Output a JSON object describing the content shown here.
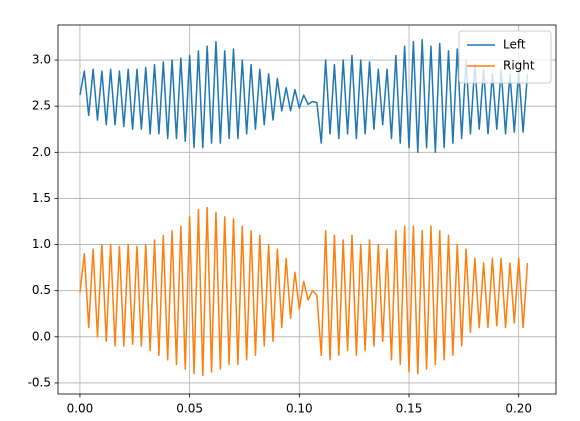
{
  "chart_data": {
    "type": "line",
    "x": [
      0,
      0.002,
      0.004,
      0.006,
      0.008,
      0.01,
      0.012,
      0.014,
      0.016,
      0.018,
      0.02,
      0.022,
      0.024,
      0.026,
      0.028,
      0.03,
      0.032,
      0.034,
      0.036,
      0.038,
      0.04,
      0.042,
      0.044,
      0.046,
      0.048,
      0.05,
      0.052,
      0.054,
      0.056,
      0.058,
      0.06,
      0.062,
      0.064,
      0.066,
      0.068,
      0.07,
      0.072,
      0.074,
      0.076,
      0.078,
      0.08,
      0.082,
      0.084,
      0.086,
      0.088,
      0.09,
      0.092,
      0.094,
      0.096,
      0.098,
      0.1,
      0.102,
      0.104,
      0.106,
      0.108,
      0.11,
      0.112,
      0.114,
      0.116,
      0.118,
      0.12,
      0.122,
      0.124,
      0.126,
      0.128,
      0.13,
      0.132,
      0.134,
      0.136,
      0.138,
      0.14,
      0.142,
      0.144,
      0.146,
      0.148,
      0.15,
      0.152,
      0.154,
      0.156,
      0.158,
      0.16,
      0.162,
      0.164,
      0.166,
      0.168,
      0.17,
      0.172,
      0.174,
      0.176,
      0.178,
      0.18,
      0.182,
      0.184,
      0.186,
      0.188,
      0.19,
      0.192,
      0.194,
      0.196,
      0.198,
      0.2,
      0.202,
      0.204
    ],
    "series": [
      {
        "name": "Left",
        "color": "#1f77b4",
        "values": [
          2.62,
          2.88,
          2.4,
          2.9,
          2.35,
          2.88,
          2.3,
          2.9,
          2.3,
          2.88,
          2.28,
          2.9,
          2.25,
          2.9,
          2.25,
          2.92,
          2.2,
          2.95,
          2.2,
          2.98,
          2.15,
          3.0,
          2.15,
          3.02,
          2.12,
          3.05,
          2.05,
          3.1,
          2.05,
          3.15,
          2.1,
          3.2,
          2.1,
          3.1,
          2.15,
          3.12,
          2.15,
          3.0,
          2.2,
          2.95,
          2.25,
          2.9,
          2.3,
          2.85,
          2.35,
          2.8,
          2.45,
          2.7,
          2.45,
          2.68,
          2.48,
          2.62,
          2.52,
          2.55,
          2.54,
          2.1,
          3.0,
          2.2,
          2.95,
          2.15,
          3.0,
          2.2,
          3.05,
          2.15,
          3.0,
          2.2,
          2.98,
          2.25,
          2.9,
          2.3,
          2.9,
          2.15,
          3.05,
          2.1,
          3.15,
          2.05,
          3.2,
          2.0,
          3.22,
          2.05,
          3.15,
          2.0,
          3.18,
          2.05,
          3.1,
          2.1,
          3.12,
          2.15,
          3.0,
          2.2,
          2.95,
          2.25,
          2.9,
          2.2,
          2.85,
          2.25,
          2.9,
          2.2,
          2.85,
          2.22,
          2.88,
          2.22,
          2.85
        ]
      },
      {
        "name": "Right",
        "color": "#ff7f0e",
        "values": [
          0.48,
          0.9,
          0.1,
          0.95,
          0.0,
          1.0,
          -0.05,
          1.0,
          -0.1,
          0.98,
          -0.1,
          1.0,
          -0.08,
          0.98,
          -0.1,
          1.0,
          -0.15,
          1.05,
          -0.2,
          1.1,
          -0.25,
          1.15,
          -0.3,
          1.2,
          -0.35,
          1.3,
          -0.4,
          1.38,
          -0.42,
          1.4,
          -0.38,
          1.35,
          -0.35,
          1.3,
          -0.3,
          1.28,
          -0.3,
          1.2,
          -0.25,
          1.15,
          -0.2,
          1.1,
          -0.1,
          1.0,
          -0.05,
          0.95,
          0.1,
          0.85,
          0.2,
          0.7,
          0.3,
          0.6,
          0.4,
          0.5,
          0.45,
          -0.2,
          1.15,
          -0.25,
          1.1,
          -0.2,
          1.05,
          -0.15,
          1.1,
          -0.2,
          1.0,
          -0.15,
          1.05,
          -0.1,
          1.0,
          -0.05,
          0.95,
          -0.25,
          1.15,
          -0.3,
          1.2,
          -0.38,
          1.2,
          -0.4,
          1.15,
          -0.35,
          1.2,
          -0.3,
          1.15,
          -0.25,
          1.1,
          -0.2,
          1.0,
          -0.1,
          0.95,
          0.05,
          0.85,
          0.1,
          0.8,
          0.1,
          0.85,
          0.12,
          0.85,
          0.1,
          0.8,
          0.15,
          0.85,
          0.1,
          0.8
        ]
      }
    ],
    "xlim": [
      -0.01,
      0.217
    ],
    "ylim": [
      -0.62,
      3.38
    ],
    "xticks": [
      {
        "value": 0,
        "label": "0.00"
      },
      0.05,
      {
        "value": 0.1,
        "label": "0.10"
      },
      0.15,
      {
        "value": 0.2,
        "label": "0.20"
      }
    ],
    "yticks": [
      -0.5,
      {
        "value": 0,
        "label": "0.0"
      },
      0.5,
      {
        "value": 1,
        "label": "1.0"
      },
      1.5,
      {
        "value": 2,
        "label": "2.0"
      },
      2.5,
      {
        "value": 3,
        "label": "3.0"
      }
    ],
    "grid": true,
    "legend": "upper right"
  }
}
